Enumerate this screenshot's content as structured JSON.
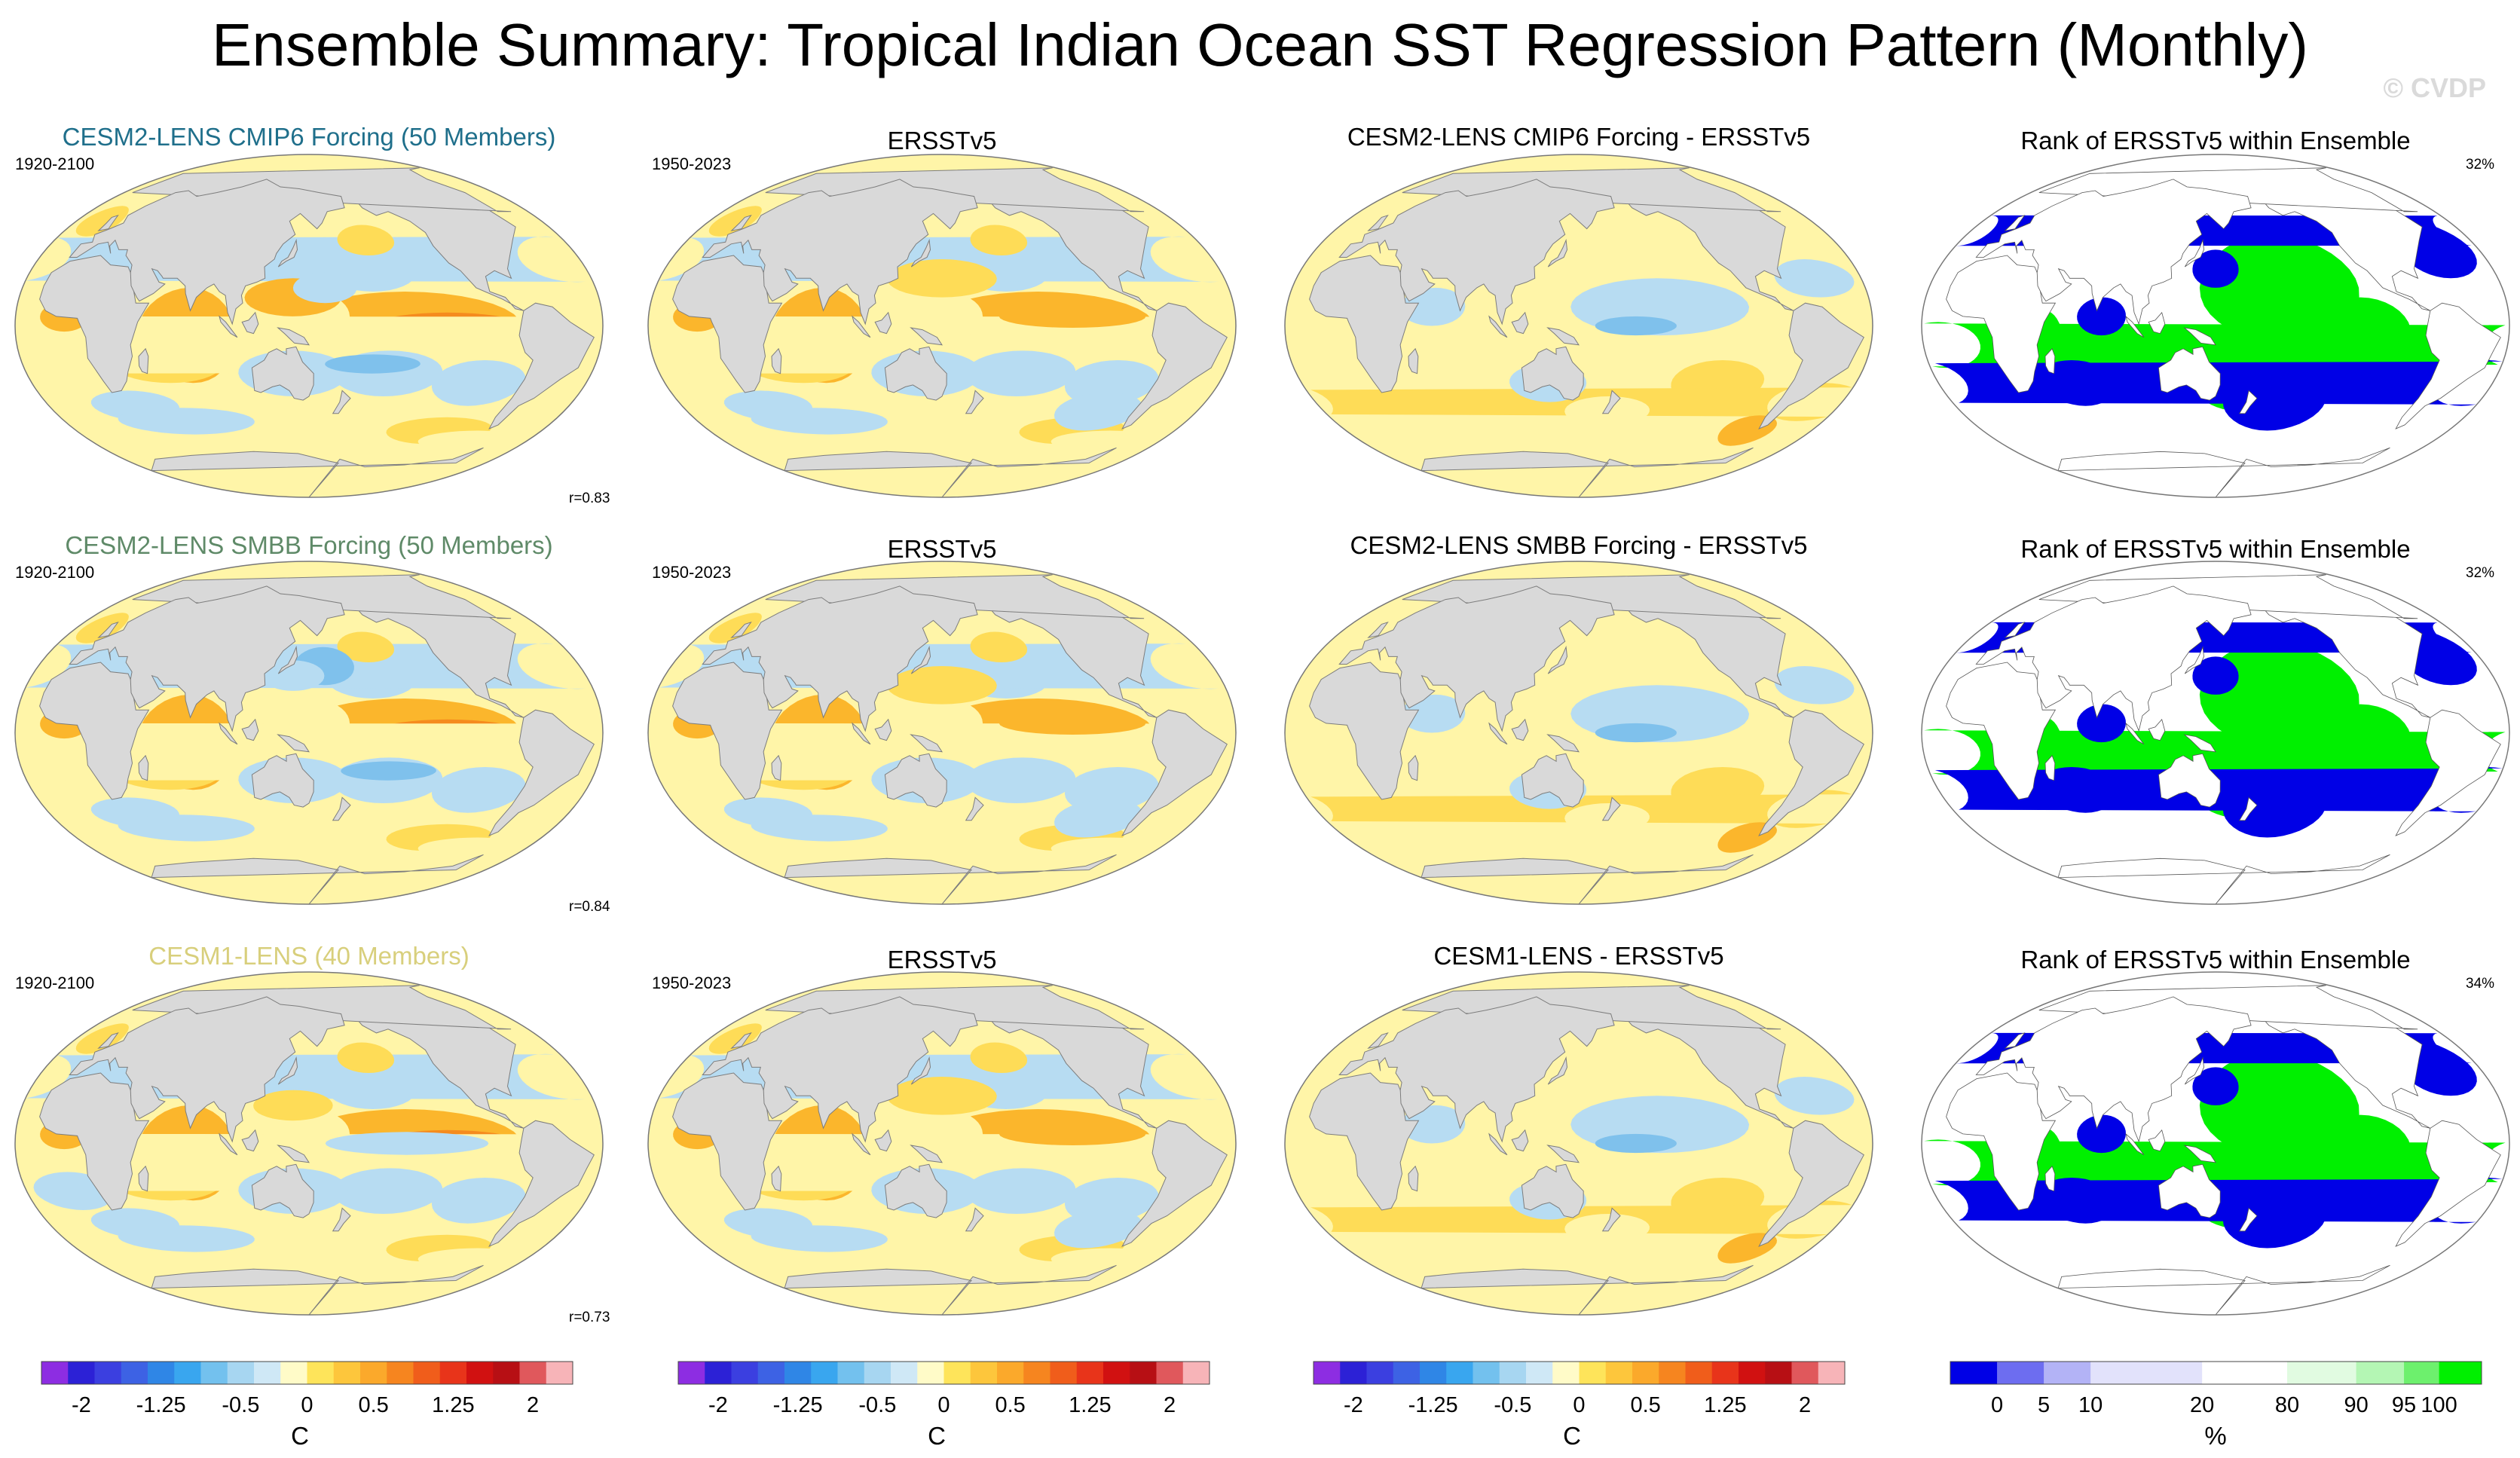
{
  "title": "Ensemble Summary: Tropical Indian Ocean SST Regression Pattern (Monthly)",
  "watermark": "© CVDP",
  "rows": [
    {
      "model_title": "CESM2-LENS CMIP6 Forcing (50 Members)",
      "model_title_color": "#1f6f8b",
      "model_period": "1920-2100",
      "correlation": "r=0.83",
      "obs_title": "ERSSTv5",
      "obs_period": "1950-2023",
      "diff_title": "CESM2-LENS CMIP6 Forcing - ERSSTv5",
      "rank_title": "Rank of ERSSTv5 within Ensemble",
      "rank_percent": "32%"
    },
    {
      "model_title": "CESM2-LENS SMBB Forcing (50 Members)",
      "model_title_color": "#5f8a68",
      "model_period": "1920-2100",
      "correlation": "r=0.84",
      "obs_title": "ERSSTv5",
      "obs_period": "1950-2023",
      "diff_title": "CESM2-LENS SMBB Forcing - ERSSTv5",
      "rank_title": "Rank of ERSSTv5 within Ensemble",
      "rank_percent": "32%"
    },
    {
      "model_title": "CESM1-LENS (40 Members)",
      "model_title_color": "#d8cf7c",
      "model_period": "1920-2100",
      "correlation": "r=0.73",
      "obs_title": "ERSSTv5",
      "obs_period": "1950-2023",
      "diff_title": "CESM1-LENS - ERSSTv5",
      "rank_title": "Rank of ERSSTv5 within Ensemble",
      "rank_percent": "34%"
    }
  ],
  "colors": {
    "land": "#d9d9d9",
    "ocean_neutral": "#ffffff",
    "pale_yellow": "#fff5a8",
    "yellow": "#fedc57",
    "orange": "#fbb62c",
    "dark_orange": "#f58b1e",
    "light_blue": "#b7dcf2",
    "blue": "#7fc1ec",
    "rank_blue": "#0000e6",
    "rank_green": "#00f000"
  },
  "chart_data": {
    "type": "heatmap",
    "description_fields": "ensemble-mean regression maps, observations, differences and rank maps",
    "sst_colorbar": {
      "unit": "C",
      "levels": [
        -2.25,
        -2,
        -1.75,
        -1.5,
        -1.25,
        -1,
        -0.75,
        -0.5,
        -0.25,
        -0.1,
        0.1,
        0.25,
        0.5,
        0.75,
        1,
        1.25,
        1.5,
        1.75,
        2,
        2.25
      ],
      "tick_labels": [
        "-2",
        "-1.25",
        "-0.5",
        "0",
        "0.5",
        "1.25",
        "2"
      ],
      "tick_values": [
        -2,
        -1.25,
        -0.5,
        0,
        0.5,
        1.25,
        2
      ],
      "colors": [
        "#8d2de2",
        "#2c21d6",
        "#3b3fe0",
        "#3d62e4",
        "#2f86e6",
        "#39a6ef",
        "#73c1ee",
        "#a7d6f1",
        "#cfe8f6",
        "#fffbc8",
        "#fee45a",
        "#fdc63c",
        "#fba92b",
        "#f6851f",
        "#f05d1b",
        "#e8341a",
        "#d11111",
        "#b70f14",
        "#e0585c",
        "#f7b4b8"
      ],
      "range": [
        -2.25,
        2.25
      ]
    },
    "rank_colorbar": {
      "unit": "%",
      "levels": [
        0,
        5,
        10,
        20,
        80,
        90,
        95,
        100
      ],
      "tick_labels": [
        "0",
        "5",
        "10",
        "20",
        "80",
        "90",
        "95",
        "100"
      ],
      "colors": [
        "#0000e6",
        "#6d6df0",
        "#b3b3f6",
        "#e2e2fb",
        "#ffffff",
        "#e1fbe1",
        "#b4f6b4",
        "#6df06d",
        "#00f000"
      ]
    }
  }
}
